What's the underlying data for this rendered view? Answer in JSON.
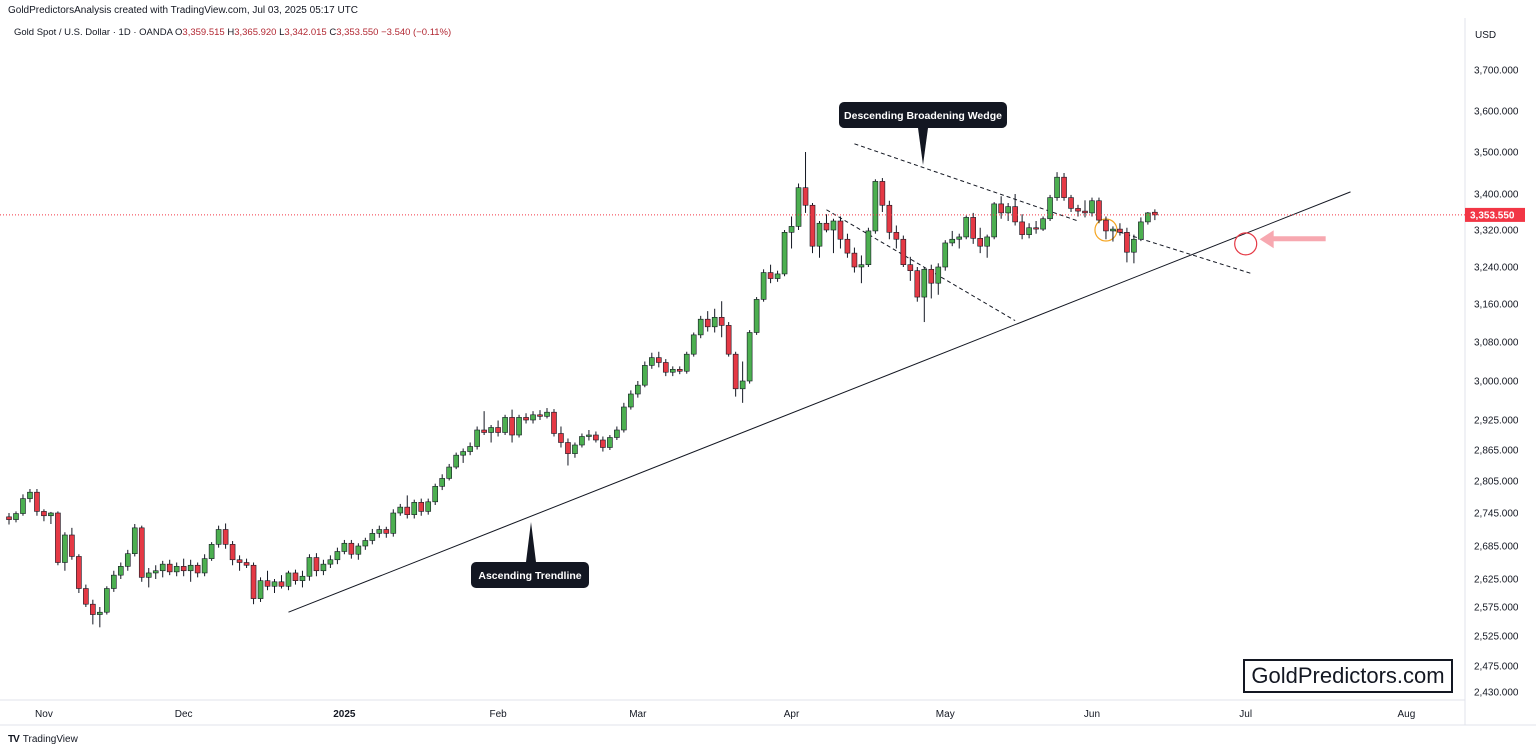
{
  "header": {
    "author_line": "GoldPredictorsAnalysis created with TradingView.com, Jul 03, 2025 05:17 UTC",
    "symbol": "Gold Spot / U.S. Dollar · 1D · OANDA",
    "o_label": "O",
    "o_value": "3,359.515",
    "h_label": "H",
    "h_value": "3,365.920",
    "l_label": "L",
    "l_value": "3,342.015",
    "c_label": "C",
    "c_value": "3,353.550",
    "change": "−3.540 (−0.11%)"
  },
  "footer": {
    "logo_text": "TV",
    "brand": "TradingView"
  },
  "watermark": "GoldPredictors.com",
  "colors": {
    "up": "#26a69a",
    "up_fill": "#4caf50",
    "down": "#e53945",
    "price_tag": "#f23645",
    "callout_bg": "#131722"
  },
  "chart_data": {
    "type": "candlestick",
    "currency": "USD",
    "last_price": "3,353.550",
    "y_ticks": [
      {
        "value": 3700,
        "label": "3,700.000"
      },
      {
        "value": 3600,
        "label": "3,600.000"
      },
      {
        "value": 3500,
        "label": "3,500.000"
      },
      {
        "value": 3400,
        "label": "3,400.000"
      },
      {
        "value": 3320,
        "label": "3,320.000"
      },
      {
        "value": 3240,
        "label": "3,240.000"
      },
      {
        "value": 3160,
        "label": "3,160.000"
      },
      {
        "value": 3080,
        "label": "3,080.000"
      },
      {
        "value": 3000,
        "label": "3,000.000"
      },
      {
        "value": 2925,
        "label": "2,925.000"
      },
      {
        "value": 2865,
        "label": "2,865.000"
      },
      {
        "value": 2805,
        "label": "2,805.000"
      },
      {
        "value": 2745,
        "label": "2,745.000"
      },
      {
        "value": 2685,
        "label": "2,685.000"
      },
      {
        "value": 2625,
        "label": "2,625.000"
      },
      {
        "value": 2575,
        "label": "2,575.000"
      },
      {
        "value": 2525,
        "label": "2,525.000"
      },
      {
        "value": 2475,
        "label": "2,475.000"
      },
      {
        "value": 2430,
        "label": "2,430.000"
      }
    ],
    "x_ticks": [
      {
        "date": "2024-11-01",
        "label": "Nov",
        "bold": false
      },
      {
        "date": "2024-12-01",
        "label": "Dec",
        "bold": false
      },
      {
        "date": "2025-01-01",
        "label": "2025",
        "bold": true
      },
      {
        "date": "2025-02-01",
        "label": "Feb",
        "bold": false
      },
      {
        "date": "2025-03-01",
        "label": "Mar",
        "bold": false
      },
      {
        "date": "2025-04-01",
        "label": "Apr",
        "bold": false
      },
      {
        "date": "2025-05-01",
        "label": "May",
        "bold": false
      },
      {
        "date": "2025-06-01",
        "label": "Jun",
        "bold": false
      },
      {
        "date": "2025-07-01",
        "label": "Jul",
        "bold": false
      },
      {
        "date": "2025-08-01",
        "label": "Aug",
        "bold": false
      }
    ],
    "candles": [
      {
        "o": 2738,
        "h": 2745,
        "l": 2724,
        "c": 2733
      },
      {
        "o": 2733,
        "h": 2748,
        "l": 2728,
        "c": 2744
      },
      {
        "o": 2744,
        "h": 2780,
        "l": 2740,
        "c": 2772
      },
      {
        "o": 2772,
        "h": 2790,
        "l": 2765,
        "c": 2784
      },
      {
        "o": 2784,
        "h": 2790,
        "l": 2740,
        "c": 2748
      },
      {
        "o": 2748,
        "h": 2752,
        "l": 2730,
        "c": 2740
      },
      {
        "o": 2740,
        "h": 2747,
        "l": 2725,
        "c": 2745
      },
      {
        "o": 2745,
        "h": 2748,
        "l": 2650,
        "c": 2655
      },
      {
        "o": 2655,
        "h": 2710,
        "l": 2640,
        "c": 2705
      },
      {
        "o": 2705,
        "h": 2718,
        "l": 2660,
        "c": 2666
      },
      {
        "o": 2666,
        "h": 2670,
        "l": 2600,
        "c": 2608
      },
      {
        "o": 2608,
        "h": 2615,
        "l": 2575,
        "c": 2580
      },
      {
        "o": 2580,
        "h": 2588,
        "l": 2545,
        "c": 2562
      },
      {
        "o": 2562,
        "h": 2575,
        "l": 2540,
        "c": 2566
      },
      {
        "o": 2566,
        "h": 2612,
        "l": 2562,
        "c": 2608
      },
      {
        "o": 2608,
        "h": 2640,
        "l": 2602,
        "c": 2632
      },
      {
        "o": 2632,
        "h": 2655,
        "l": 2625,
        "c": 2648
      },
      {
        "o": 2648,
        "h": 2678,
        "l": 2640,
        "c": 2671
      },
      {
        "o": 2671,
        "h": 2725,
        "l": 2666,
        "c": 2718
      },
      {
        "o": 2718,
        "h": 2722,
        "l": 2620,
        "c": 2628
      },
      {
        "o": 2628,
        "h": 2645,
        "l": 2610,
        "c": 2636
      },
      {
        "o": 2636,
        "h": 2650,
        "l": 2625,
        "c": 2640
      },
      {
        "o": 2640,
        "h": 2658,
        "l": 2628,
        "c": 2652
      },
      {
        "o": 2652,
        "h": 2660,
        "l": 2632,
        "c": 2638
      },
      {
        "o": 2638,
        "h": 2655,
        "l": 2630,
        "c": 2648
      },
      {
        "o": 2648,
        "h": 2662,
        "l": 2630,
        "c": 2640
      },
      {
        "o": 2640,
        "h": 2660,
        "l": 2620,
        "c": 2650
      },
      {
        "o": 2650,
        "h": 2655,
        "l": 2628,
        "c": 2636
      },
      {
        "o": 2636,
        "h": 2670,
        "l": 2630,
        "c": 2662
      },
      {
        "o": 2662,
        "h": 2692,
        "l": 2658,
        "c": 2688
      },
      {
        "o": 2688,
        "h": 2722,
        "l": 2682,
        "c": 2715
      },
      {
        "o": 2715,
        "h": 2726,
        "l": 2680,
        "c": 2688
      },
      {
        "o": 2688,
        "h": 2694,
        "l": 2650,
        "c": 2660
      },
      {
        "o": 2660,
        "h": 2668,
        "l": 2640,
        "c": 2655
      },
      {
        "o": 2655,
        "h": 2662,
        "l": 2645,
        "c": 2650
      },
      {
        "o": 2650,
        "h": 2655,
        "l": 2580,
        "c": 2590
      },
      {
        "o": 2590,
        "h": 2628,
        "l": 2584,
        "c": 2622
      },
      {
        "o": 2622,
        "h": 2640,
        "l": 2605,
        "c": 2612
      },
      {
        "o": 2612,
        "h": 2625,
        "l": 2600,
        "c": 2620
      },
      {
        "o": 2620,
        "h": 2632,
        "l": 2608,
        "c": 2612
      },
      {
        "o": 2612,
        "h": 2640,
        "l": 2605,
        "c": 2636
      },
      {
        "o": 2636,
        "h": 2642,
        "l": 2615,
        "c": 2622
      },
      {
        "o": 2622,
        "h": 2640,
        "l": 2610,
        "c": 2630
      },
      {
        "o": 2630,
        "h": 2670,
        "l": 2622,
        "c": 2664
      },
      {
        "o": 2664,
        "h": 2672,
        "l": 2630,
        "c": 2640
      },
      {
        "o": 2640,
        "h": 2660,
        "l": 2632,
        "c": 2652
      },
      {
        "o": 2652,
        "h": 2668,
        "l": 2645,
        "c": 2660
      },
      {
        "o": 2660,
        "h": 2682,
        "l": 2652,
        "c": 2675
      },
      {
        "o": 2675,
        "h": 2696,
        "l": 2670,
        "c": 2690
      },
      {
        "o": 2690,
        "h": 2696,
        "l": 2662,
        "c": 2670
      },
      {
        "o": 2670,
        "h": 2690,
        "l": 2660,
        "c": 2685
      },
      {
        "o": 2685,
        "h": 2700,
        "l": 2678,
        "c": 2695
      },
      {
        "o": 2695,
        "h": 2716,
        "l": 2688,
        "c": 2708
      },
      {
        "o": 2708,
        "h": 2722,
        "l": 2700,
        "c": 2715
      },
      {
        "o": 2715,
        "h": 2720,
        "l": 2700,
        "c": 2708
      },
      {
        "o": 2708,
        "h": 2752,
        "l": 2702,
        "c": 2745
      },
      {
        "o": 2745,
        "h": 2762,
        "l": 2740,
        "c": 2756
      },
      {
        "o": 2756,
        "h": 2778,
        "l": 2735,
        "c": 2742
      },
      {
        "o": 2742,
        "h": 2770,
        "l": 2735,
        "c": 2765
      },
      {
        "o": 2765,
        "h": 2772,
        "l": 2740,
        "c": 2748
      },
      {
        "o": 2748,
        "h": 2772,
        "l": 2742,
        "c": 2766
      },
      {
        "o": 2766,
        "h": 2800,
        "l": 2760,
        "c": 2795
      },
      {
        "o": 2795,
        "h": 2818,
        "l": 2788,
        "c": 2810
      },
      {
        "o": 2810,
        "h": 2838,
        "l": 2806,
        "c": 2832
      },
      {
        "o": 2832,
        "h": 2860,
        "l": 2828,
        "c": 2855
      },
      {
        "o": 2855,
        "h": 2868,
        "l": 2840,
        "c": 2862
      },
      {
        "o": 2862,
        "h": 2880,
        "l": 2855,
        "c": 2872
      },
      {
        "o": 2872,
        "h": 2912,
        "l": 2866,
        "c": 2905
      },
      {
        "o": 2905,
        "h": 2942,
        "l": 2895,
        "c": 2900
      },
      {
        "o": 2900,
        "h": 2915,
        "l": 2880,
        "c": 2910
      },
      {
        "o": 2910,
        "h": 2924,
        "l": 2892,
        "c": 2900
      },
      {
        "o": 2900,
        "h": 2935,
        "l": 2895,
        "c": 2930
      },
      {
        "o": 2930,
        "h": 2945,
        "l": 2880,
        "c": 2895
      },
      {
        "o": 2895,
        "h": 2935,
        "l": 2890,
        "c": 2930
      },
      {
        "o": 2930,
        "h": 2938,
        "l": 2918,
        "c": 2925
      },
      {
        "o": 2925,
        "h": 2942,
        "l": 2918,
        "c": 2935
      },
      {
        "o": 2935,
        "h": 2944,
        "l": 2925,
        "c": 2932
      },
      {
        "o": 2932,
        "h": 2948,
        "l": 2928,
        "c": 2940
      },
      {
        "o": 2940,
        "h": 2946,
        "l": 2892,
        "c": 2898
      },
      {
        "o": 2898,
        "h": 2912,
        "l": 2870,
        "c": 2880
      },
      {
        "o": 2880,
        "h": 2888,
        "l": 2835,
        "c": 2858
      },
      {
        "o": 2858,
        "h": 2880,
        "l": 2850,
        "c": 2875
      },
      {
        "o": 2875,
        "h": 2898,
        "l": 2870,
        "c": 2892
      },
      {
        "o": 2892,
        "h": 2905,
        "l": 2884,
        "c": 2895
      },
      {
        "o": 2895,
        "h": 2902,
        "l": 2880,
        "c": 2885
      },
      {
        "o": 2885,
        "h": 2892,
        "l": 2862,
        "c": 2870
      },
      {
        "o": 2870,
        "h": 2895,
        "l": 2865,
        "c": 2890
      },
      {
        "o": 2890,
        "h": 2912,
        "l": 2885,
        "c": 2905
      },
      {
        "o": 2905,
        "h": 2958,
        "l": 2900,
        "c": 2950
      },
      {
        "o": 2950,
        "h": 2982,
        "l": 2945,
        "c": 2975
      },
      {
        "o": 2975,
        "h": 3000,
        "l": 2968,
        "c": 2992
      },
      {
        "o": 2992,
        "h": 3040,
        "l": 2988,
        "c": 3032
      },
      {
        "o": 3032,
        "h": 3058,
        "l": 3025,
        "c": 3048
      },
      {
        "o": 3048,
        "h": 3060,
        "l": 3028,
        "c": 3038
      },
      {
        "o": 3038,
        "h": 3045,
        "l": 3010,
        "c": 3018
      },
      {
        "o": 3018,
        "h": 3030,
        "l": 3010,
        "c": 3024
      },
      {
        "o": 3024,
        "h": 3030,
        "l": 3014,
        "c": 3020
      },
      {
        "o": 3020,
        "h": 3060,
        "l": 3015,
        "c": 3055
      },
      {
        "o": 3055,
        "h": 3100,
        "l": 3050,
        "c": 3095
      },
      {
        "o": 3095,
        "h": 3135,
        "l": 3088,
        "c": 3128
      },
      {
        "o": 3128,
        "h": 3145,
        "l": 3102,
        "c": 3112
      },
      {
        "o": 3112,
        "h": 3150,
        "l": 3100,
        "c": 3132
      },
      {
        "o": 3132,
        "h": 3166,
        "l": 3090,
        "c": 3115
      },
      {
        "o": 3115,
        "h": 3122,
        "l": 3050,
        "c": 3055
      },
      {
        "o": 3055,
        "h": 3060,
        "l": 2970,
        "c": 2985
      },
      {
        "o": 2985,
        "h": 3040,
        "l": 2958,
        "c": 3000
      },
      {
        "o": 3000,
        "h": 3105,
        "l": 2995,
        "c": 3100
      },
      {
        "o": 3100,
        "h": 3175,
        "l": 3095,
        "c": 3170
      },
      {
        "o": 3170,
        "h": 3235,
        "l": 3165,
        "c": 3228
      },
      {
        "o": 3228,
        "h": 3245,
        "l": 3205,
        "c": 3215
      },
      {
        "o": 3215,
        "h": 3232,
        "l": 3208,
        "c": 3225
      },
      {
        "o": 3225,
        "h": 3320,
        "l": 3220,
        "c": 3315
      },
      {
        "o": 3315,
        "h": 3350,
        "l": 3280,
        "c": 3328
      },
      {
        "o": 3328,
        "h": 3425,
        "l": 3320,
        "c": 3415
      },
      {
        "o": 3415,
        "h": 3500,
        "l": 3358,
        "c": 3375
      },
      {
        "o": 3375,
        "h": 3380,
        "l": 3270,
        "c": 3285
      },
      {
        "o": 3285,
        "h": 3340,
        "l": 3260,
        "c": 3335
      },
      {
        "o": 3335,
        "h": 3355,
        "l": 3315,
        "c": 3320
      },
      {
        "o": 3320,
        "h": 3345,
        "l": 3270,
        "c": 3340
      },
      {
        "o": 3340,
        "h": 3350,
        "l": 3280,
        "c": 3300
      },
      {
        "o": 3300,
        "h": 3312,
        "l": 3260,
        "c": 3270
      },
      {
        "o": 3270,
        "h": 3282,
        "l": 3228,
        "c": 3240
      },
      {
        "o": 3240,
        "h": 3265,
        "l": 3205,
        "c": 3245
      },
      {
        "o": 3245,
        "h": 3325,
        "l": 3240,
        "c": 3318
      },
      {
        "o": 3318,
        "h": 3435,
        "l": 3312,
        "c": 3430
      },
      {
        "o": 3430,
        "h": 3438,
        "l": 3360,
        "c": 3375
      },
      {
        "o": 3375,
        "h": 3385,
        "l": 3300,
        "c": 3315
      },
      {
        "o": 3315,
        "h": 3330,
        "l": 3280,
        "c": 3300
      },
      {
        "o": 3300,
        "h": 3308,
        "l": 3240,
        "c": 3245
      },
      {
        "o": 3245,
        "h": 3262,
        "l": 3210,
        "c": 3232
      },
      {
        "o": 3232,
        "h": 3240,
        "l": 3165,
        "c": 3175
      },
      {
        "o": 3175,
        "h": 3240,
        "l": 3122,
        "c": 3235
      },
      {
        "o": 3235,
        "h": 3245,
        "l": 3172,
        "c": 3205
      },
      {
        "o": 3205,
        "h": 3248,
        "l": 3180,
        "c": 3240
      },
      {
        "o": 3240,
        "h": 3298,
        "l": 3232,
        "c": 3292
      },
      {
        "o": 3292,
        "h": 3318,
        "l": 3285,
        "c": 3300
      },
      {
        "o": 3300,
        "h": 3312,
        "l": 3280,
        "c": 3305
      },
      {
        "o": 3305,
        "h": 3352,
        "l": 3300,
        "c": 3348
      },
      {
        "o": 3348,
        "h": 3358,
        "l": 3290,
        "c": 3302
      },
      {
        "o": 3302,
        "h": 3325,
        "l": 3270,
        "c": 3285
      },
      {
        "o": 3285,
        "h": 3310,
        "l": 3260,
        "c": 3305
      },
      {
        "o": 3305,
        "h": 3382,
        "l": 3300,
        "c": 3378
      },
      {
        "o": 3378,
        "h": 3395,
        "l": 3345,
        "c": 3358
      },
      {
        "o": 3358,
        "h": 3380,
        "l": 3340,
        "c": 3372
      },
      {
        "o": 3372,
        "h": 3400,
        "l": 3330,
        "c": 3338
      },
      {
        "o": 3338,
        "h": 3355,
        "l": 3300,
        "c": 3310
      },
      {
        "o": 3310,
        "h": 3335,
        "l": 3302,
        "c": 3325
      },
      {
        "o": 3325,
        "h": 3340,
        "l": 3312,
        "c": 3322
      },
      {
        "o": 3322,
        "h": 3350,
        "l": 3318,
        "c": 3345
      },
      {
        "o": 3345,
        "h": 3398,
        "l": 3340,
        "c": 3392
      },
      {
        "o": 3392,
        "h": 3452,
        "l": 3385,
        "c": 3440
      },
      {
        "o": 3440,
        "h": 3450,
        "l": 3385,
        "c": 3392
      },
      {
        "o": 3392,
        "h": 3398,
        "l": 3360,
        "c": 3368
      },
      {
        "o": 3368,
        "h": 3376,
        "l": 3350,
        "c": 3362
      },
      {
        "o": 3362,
        "h": 3386,
        "l": 3348,
        "c": 3358
      },
      {
        "o": 3358,
        "h": 3392,
        "l": 3350,
        "c": 3385
      },
      {
        "o": 3385,
        "h": 3392,
        "l": 3335,
        "c": 3342
      },
      {
        "o": 3342,
        "h": 3350,
        "l": 3300,
        "c": 3318
      },
      {
        "o": 3318,
        "h": 3328,
        "l": 3295,
        "c": 3322
      },
      {
        "o": 3322,
        "h": 3335,
        "l": 3308,
        "c": 3315
      },
      {
        "o": 3315,
        "h": 3325,
        "l": 3250,
        "c": 3272
      },
      {
        "o": 3272,
        "h": 3310,
        "l": 3248,
        "c": 3300
      },
      {
        "o": 3300,
        "h": 3348,
        "l": 3296,
        "c": 3338
      },
      {
        "o": 3338,
        "h": 3360,
        "l": 3332,
        "c": 3358
      },
      {
        "o": 3359.515,
        "h": 3365.92,
        "l": 3342.015,
        "c": 3353.55
      }
    ],
    "annotations": [
      {
        "type": "callout",
        "text": "Descending Broadening Wedge"
      },
      {
        "type": "callout",
        "text": "Ascending Trendline"
      }
    ]
  }
}
